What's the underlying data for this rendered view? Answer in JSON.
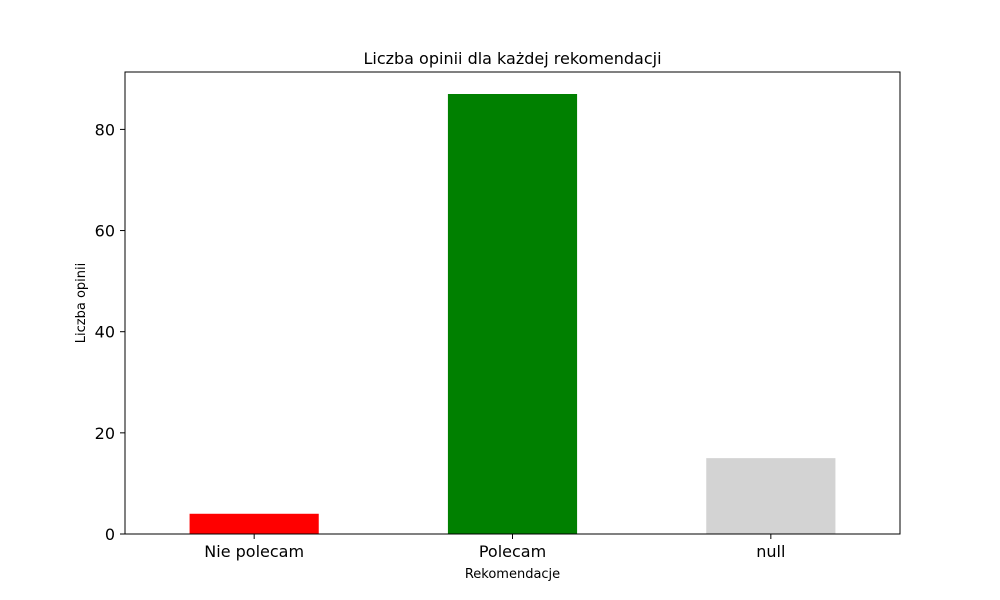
{
  "chart_data": {
    "type": "bar",
    "title": "Liczba opinii dla każdej rekomendacji",
    "xlabel": "Rekomendacje",
    "ylabel": "Liczba opinii",
    "categories": [
      "Nie polecam",
      "Polecam",
      "null"
    ],
    "values": [
      4,
      87,
      15
    ],
    "colors": [
      "#ff0000",
      "#008000",
      "#d3d3d3"
    ],
    "ylim": [
      0,
      91.35
    ],
    "yticks": [
      0,
      20,
      40,
      60,
      80
    ],
    "grid": false,
    "legend": "none"
  }
}
